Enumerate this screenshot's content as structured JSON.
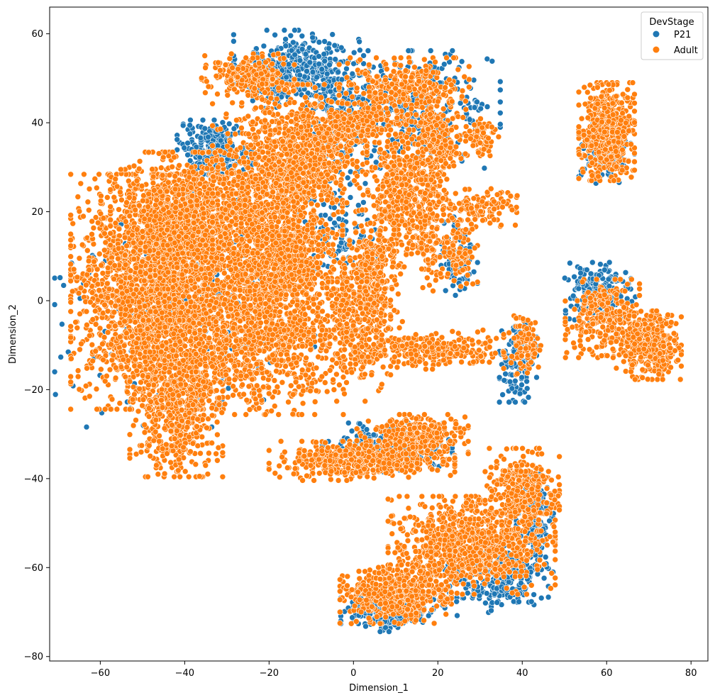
{
  "chart_data": {
    "type": "scatter",
    "title": "",
    "xlabel": "Dimension_1",
    "ylabel": "Dimension_2",
    "xlim": [
      -72,
      84
    ],
    "ylim": [
      -81,
      66
    ],
    "xticks": [
      -60,
      -40,
      -20,
      0,
      20,
      40,
      60,
      80
    ],
    "yticks": [
      -80,
      -60,
      -40,
      -20,
      0,
      20,
      40,
      60
    ],
    "grid": false,
    "legend": {
      "title": "DevStage",
      "placement": "top-right",
      "entries": [
        "P21",
        "Adult"
      ]
    },
    "colors": {
      "P21": "#1f77b4",
      "Adult": "#ff7f0e"
    },
    "series": [
      {
        "name": "P21",
        "color": "#1f77b4",
        "clusters": [
          {
            "cx": -13,
            "cy": 52,
            "sx": 7,
            "sy": 4,
            "n": 420
          },
          {
            "cx": -33,
            "cy": 34,
            "sx": 4,
            "sy": 3,
            "n": 260
          },
          {
            "cx": 15,
            "cy": 43,
            "sx": 9,
            "sy": 6,
            "n": 320
          },
          {
            "cx": -3,
            "cy": 40,
            "sx": 4,
            "sy": 5,
            "n": 160
          },
          {
            "cx": 60,
            "cy": 33,
            "sx": 3,
            "sy": 3,
            "n": 120
          },
          {
            "cx": 58,
            "cy": 2,
            "sx": 4,
            "sy": 3,
            "n": 170
          },
          {
            "cx": 39,
            "cy": -14,
            "sx": 2,
            "sy": 4,
            "n": 130
          },
          {
            "cx": 8,
            "cy": -70,
            "sx": 5,
            "sy": 2,
            "n": 200
          },
          {
            "cx": 33,
            "cy": -62,
            "sx": 6,
            "sy": 4,
            "n": 300
          },
          {
            "cx": 43,
            "cy": -50,
            "sx": 2,
            "sy": 5,
            "n": 160
          },
          {
            "cx": 8,
            "cy": -33,
            "sx": 7,
            "sy": 2.5,
            "n": 200
          },
          {
            "cx": 25,
            "cy": 10,
            "sx": 2,
            "sy": 4,
            "n": 90
          },
          {
            "cx": -40,
            "cy": -2,
            "sx": 14,
            "sy": 12,
            "n": 260
          },
          {
            "cx": -3,
            "cy": 18,
            "sx": 4,
            "sy": 6,
            "n": 110
          }
        ]
      },
      {
        "name": "Adult",
        "color": "#ff7f0e",
        "clusters": [
          {
            "cx": -45,
            "cy": 2,
            "sx": 10,
            "sy": 12,
            "n": 2600
          },
          {
            "cx": -40,
            "cy": 18,
            "sx": 8,
            "sy": 7,
            "n": 900
          },
          {
            "cx": -42,
            "cy": -22,
            "sx": 5,
            "sy": 8,
            "n": 650
          },
          {
            "cx": -18,
            "cy": 20,
            "sx": 7,
            "sy": 13,
            "n": 1500
          },
          {
            "cx": -10,
            "cy": 33,
            "sx": 6,
            "sy": 5,
            "n": 400
          },
          {
            "cx": -20,
            "cy": -8,
            "sx": 8,
            "sy": 8,
            "n": 800
          },
          {
            "cx": 0,
            "cy": -5,
            "sx": 4,
            "sy": 8,
            "n": 300
          },
          {
            "cx": 5,
            "cy": 5,
            "sx": 3,
            "sy": 7,
            "n": 300
          },
          {
            "cx": -25,
            "cy": 50,
            "sx": 5,
            "sy": 2.5,
            "n": 220
          },
          {
            "cx": 12,
            "cy": 48,
            "sx": 7,
            "sy": 3,
            "n": 280
          },
          {
            "cx": 3,
            "cy": 40,
            "sx": 7,
            "sy": 3,
            "n": 240
          },
          {
            "cx": 10,
            "cy": 23,
            "sx": 3,
            "sy": 7,
            "n": 320
          },
          {
            "cx": 18,
            "cy": 22,
            "sx": 2.5,
            "sy": 9,
            "n": 280
          },
          {
            "cx": 20,
            "cy": 36,
            "sx": 3,
            "sy": 4,
            "n": 160
          },
          {
            "cx": 30,
            "cy": 37,
            "sx": 2,
            "sy": 2,
            "n": 70
          },
          {
            "cx": 30,
            "cy": 21,
            "sx": 4,
            "sy": 2,
            "n": 110
          },
          {
            "cx": 25,
            "cy": 12,
            "sx": 2,
            "sy": 4,
            "n": 90
          },
          {
            "cx": 60,
            "cy": 38,
            "sx": 3,
            "sy": 5,
            "n": 520
          },
          {
            "cx": 59,
            "cy": -4,
            "sx": 4,
            "sy": 4,
            "n": 260
          },
          {
            "cx": 70,
            "cy": -10,
            "sx": 3.5,
            "sy": 3.5,
            "n": 420
          },
          {
            "cx": 40,
            "cy": -10,
            "sx": 2,
            "sy": 3,
            "n": 90
          },
          {
            "cx": 18,
            "cy": -11,
            "sx": 8,
            "sy": 2,
            "n": 260
          },
          {
            "cx": 2,
            "cy": -36,
            "sx": 10,
            "sy": 2,
            "n": 500
          },
          {
            "cx": 14,
            "cy": -30,
            "sx": 6,
            "sy": 2,
            "n": 260
          },
          {
            "cx": 28,
            "cy": -55,
            "sx": 9,
            "sy": 5,
            "n": 900
          },
          {
            "cx": 10,
            "cy": -66,
            "sx": 6,
            "sy": 3,
            "n": 500
          },
          {
            "cx": 40,
            "cy": -42,
            "sx": 4,
            "sy": 4,
            "n": 300
          },
          {
            "cx": -15,
            "cy": 8,
            "sx": 3,
            "sy": 3,
            "n": 200
          }
        ]
      }
    ]
  }
}
